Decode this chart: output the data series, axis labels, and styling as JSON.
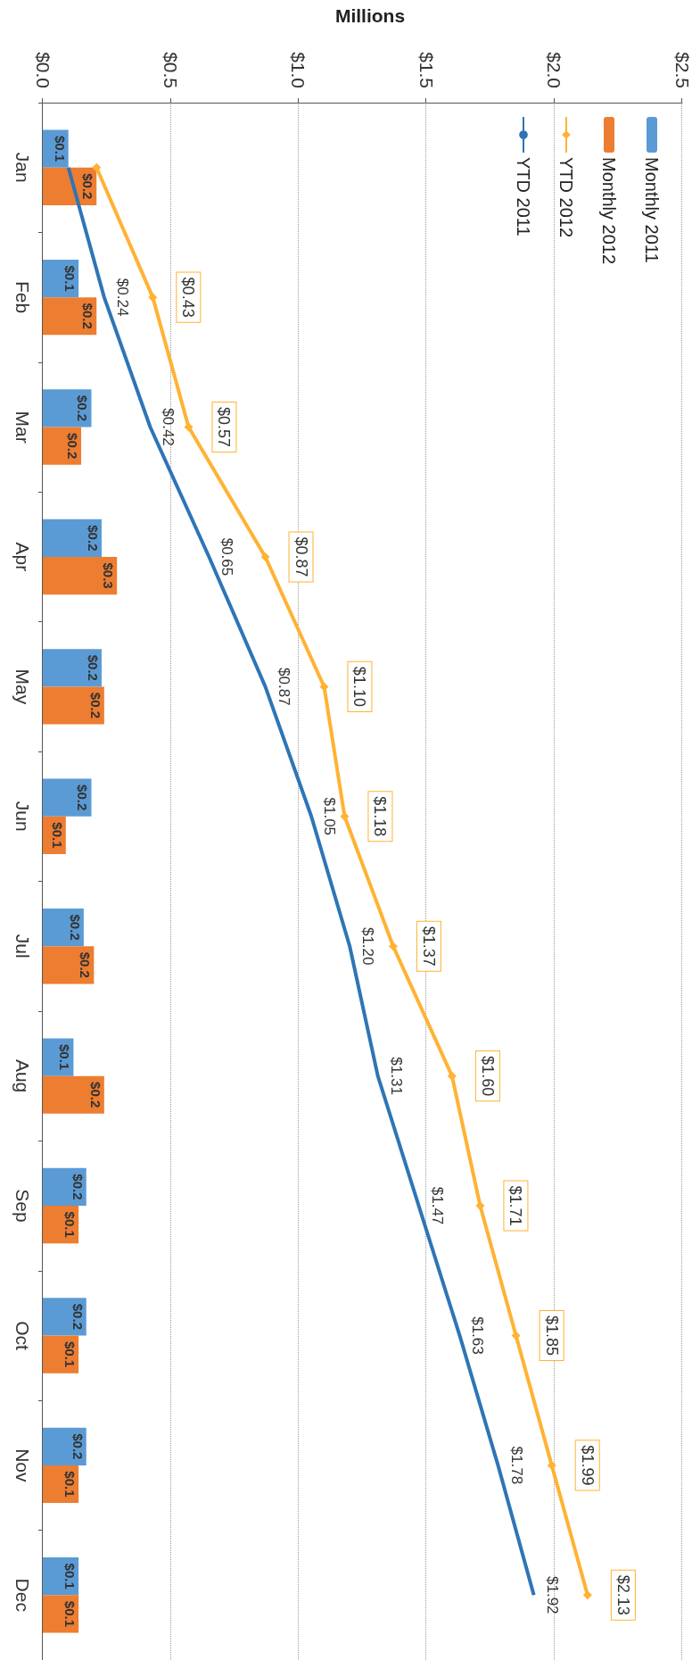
{
  "chart_data": {
    "type": "bar",
    "orientation": "horizontal",
    "xlabel": "Millions",
    "categories": [
      "Jan",
      "Feb",
      "Mar",
      "Apr",
      "May",
      "Jun",
      "Jul",
      "Aug",
      "Sep",
      "Oct",
      "Nov",
      "Dec"
    ],
    "xlim": [
      0,
      2.5
    ],
    "xticks": [
      {
        "value": 0,
        "label": "$0.0"
      },
      {
        "value": 0.5,
        "label": "$0.5"
      },
      {
        "value": 1,
        "label": "$1.0"
      },
      {
        "value": 1.5,
        "label": "$1.5"
      },
      {
        "value": 2,
        "label": "$2.0"
      },
      {
        "value": 2.5,
        "label": "$2.5"
      }
    ],
    "grid": "x",
    "legend": "top right",
    "series": [
      {
        "name": "Monthly 2011",
        "color": "#5b9bd5",
        "values": [
          0.1,
          0.14,
          0.19,
          0.23,
          0.23,
          0.19,
          0.16,
          0.12,
          0.17,
          0.17,
          0.17,
          0.14
        ],
        "value_labels": [
          "$0.1",
          "$0.1",
          "$0.2",
          "$0.2",
          "$0.2",
          "$0.2",
          "$0.2",
          "$0.1",
          "$0.2",
          "$0.2",
          "$0.2",
          "$0.1"
        ]
      },
      {
        "name": "Monthly 2012",
        "color": "#ed7d31",
        "values": [
          0.21,
          0.21,
          0.15,
          0.29,
          0.24,
          0.09,
          0.2,
          0.24,
          0.14,
          0.14,
          0.14,
          0.14
        ],
        "value_labels": [
          "$0.2",
          "$0.2",
          "$0.2",
          "$0.3",
          "$0.2",
          "$0.1",
          "$0.2",
          "$0.2",
          "$0.1",
          "$0.1",
          "$0.1",
          "$0.1"
        ]
      },
      {
        "name": "YTD 2012",
        "type": "line",
        "color": "#ffb233",
        "marker": "diamond",
        "values": [
          0.21,
          0.43,
          0.57,
          0.87,
          1.1,
          1.18,
          1.37,
          1.6,
          1.71,
          1.85,
          1.99,
          2.13
        ],
        "value_labels": [
          null,
          "$0.43",
          "$0.57",
          "$0.87",
          "$1.10",
          "$1.18",
          "$1.37",
          "$1.60",
          "$1.71",
          "$1.85",
          "$1.99",
          "$2.13"
        ]
      },
      {
        "name": "YTD 2011",
        "type": "line",
        "color": "#2e75b6",
        "marker": "none",
        "values": [
          0.1,
          0.24,
          0.42,
          0.65,
          0.87,
          1.05,
          1.2,
          1.31,
          1.47,
          1.63,
          1.78,
          1.92
        ],
        "value_labels": [
          null,
          "$0.24",
          "$0.42",
          "$0.65",
          "$0.87",
          "$1.05",
          "$1.20",
          "$1.31",
          "$1.47",
          "$1.63",
          "$1.78",
          "$1.92"
        ]
      }
    ]
  }
}
